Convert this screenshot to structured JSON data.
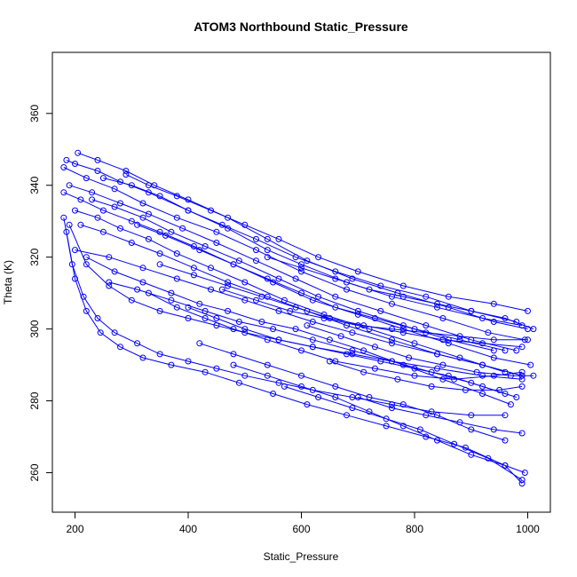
{
  "chart_data": {
    "type": "line",
    "title": "ATOM3 Northbound Static_Pressure",
    "xlabel": "Static_Pressure",
    "ylabel": "Theta (K)",
    "xlim": [
      160,
      1040
    ],
    "ylim": [
      249,
      377
    ],
    "xticks": [
      200,
      400,
      600,
      800,
      1000
    ],
    "yticks": [
      260,
      280,
      300,
      320,
      340,
      360
    ],
    "grid": false,
    "legend": "none",
    "marker": "open-circle",
    "line_color": "#0000FF",
    "series": [
      {
        "x": [
          185,
          200,
          240,
          280,
          330,
          400,
          470,
          540,
          600,
          680,
          760,
          840,
          920,
          990
        ],
        "y": [
          347,
          346,
          344,
          341,
          338,
          333,
          328,
          322,
          318,
          313,
          309,
          306,
          303,
          301
        ]
      },
      {
        "x": [
          205,
          240,
          290,
          340,
          400,
          470,
          540,
          610,
          690,
          770,
          860,
          940,
          1000
        ],
        "y": [
          349,
          347,
          344,
          340,
          336,
          331,
          325,
          319,
          314,
          310,
          306,
          302,
          300
        ]
      },
      {
        "x": [
          180,
          220,
          270,
          320,
          380,
          450,
          520,
          600,
          680,
          760,
          850,
          930,
          995
        ],
        "y": [
          345,
          342,
          339,
          335,
          331,
          327,
          322,
          316,
          311,
          307,
          303,
          299,
          297
        ]
      },
      {
        "x": [
          190,
          230,
          280,
          330,
          390,
          450,
          520,
          590,
          660,
          740,
          820,
          900,
          980
        ],
        "y": [
          340,
          338,
          335,
          332,
          328,
          324,
          319,
          314,
          309,
          305,
          301,
          297,
          294
        ]
      },
      {
        "x": [
          180,
          210,
          250,
          300,
          350,
          410,
          480,
          550,
          620,
          700,
          780,
          860,
          940,
          1005
        ],
        "y": [
          338,
          336,
          333,
          330,
          327,
          323,
          318,
          313,
          308,
          304,
          300,
          296,
          292,
          290
        ]
      },
      {
        "x": [
          200,
          240,
          280,
          330,
          380,
          440,
          500,
          570,
          640,
          720,
          800,
          880,
          960
        ],
        "y": [
          333,
          331,
          328,
          325,
          321,
          317,
          313,
          308,
          304,
          300,
          296,
          292,
          288
        ]
      },
      {
        "x": [
          210,
          250,
          300,
          350,
          410,
          470,
          540,
          610,
          680,
          760,
          840,
          920,
          990
        ],
        "y": [
          329,
          327,
          324,
          321,
          317,
          313,
          309,
          305,
          301,
          297,
          293,
          290,
          287
        ]
      },
      {
        "x": [
          250,
          300,
          350,
          400,
          460,
          520,
          590,
          660,
          740,
          820,
          900,
          980
        ],
        "y": [
          342,
          340,
          337,
          333,
          329,
          325,
          320,
          316,
          312,
          309,
          305,
          302
        ]
      },
      {
        "x": [
          290,
          330,
          380,
          440,
          500,
          560,
          630,
          700,
          780,
          860,
          940,
          1000
        ],
        "y": [
          343,
          340,
          337,
          333,
          329,
          325,
          320,
          316,
          312,
          309,
          307,
          305
        ]
      },
      {
        "x": [
          230,
          270,
          320,
          370,
          430,
          490,
          560,
          630,
          700,
          780,
          860,
          940
        ],
        "y": [
          336,
          334,
          331,
          327,
          323,
          319,
          314,
          309,
          305,
          301,
          297,
          294
        ]
      },
      {
        "x": [
          200,
          260,
          320,
          380,
          440,
          500,
          560,
          620,
          690,
          760,
          840,
          920,
          990
        ],
        "y": [
          322,
          320,
          317,
          314,
          311,
          308,
          305,
          302,
          299,
          296,
          293,
          290,
          287
        ]
      },
      {
        "x": [
          310,
          360,
          420,
          480,
          540,
          600,
          660,
          730,
          800,
          880,
          960
        ],
        "y": [
          329,
          326,
          322,
          318,
          314,
          310,
          306,
          303,
          300,
          297,
          294
        ]
      },
      {
        "x": [
          190,
          220,
          260,
          300,
          350,
          400,
          450,
          500,
          560,
          620,
          690,
          760,
          840,
          920,
          990
        ],
        "y": [
          329,
          318,
          312,
          308,
          305,
          303,
          301,
          299,
          297,
          295,
          293,
          291,
          289,
          287,
          286
        ]
      },
      {
        "x": [
          180,
          195,
          215,
          240,
          270,
          310,
          350,
          400,
          450,
          500,
          560,
          620,
          690,
          760,
          830,
          900,
          960
        ],
        "y": [
          331,
          318,
          309,
          303,
          299,
          296,
          293,
          291,
          289,
          287,
          285,
          283,
          281,
          279,
          277,
          276,
          276
        ]
      },
      {
        "x": [
          185,
          200,
          220,
          245,
          280,
          320,
          370,
          430,
          490,
          550,
          610,
          680,
          750,
          820,
          890,
          960,
          990
        ],
        "y": [
          327,
          314,
          305,
          299,
          295,
          292,
          290,
          288,
          285,
          282,
          279,
          276,
          273,
          270,
          267,
          262,
          257
        ]
      },
      {
        "x": [
          330,
          380,
          430,
          480,
          540,
          600,
          660,
          730,
          800,
          870,
          940,
          990
        ],
        "y": [
          310,
          306,
          303,
          300,
          297,
          294,
          291,
          289,
          287,
          286,
          287,
          288
        ]
      },
      {
        "x": [
          220,
          270,
          320,
          370,
          420,
          470,
          530,
          590,
          650,
          710,
          780,
          850,
          920,
          970
        ],
        "y": [
          320,
          316,
          313,
          310,
          307,
          305,
          302,
          300,
          297,
          294,
          290,
          286,
          282,
          279
        ]
      },
      {
        "x": [
          400,
          450,
          500,
          560,
          620,
          680,
          740,
          800,
          860,
          920,
          980
        ],
        "y": [
          306,
          303,
          300,
          297,
          295,
          293,
          291,
          289,
          287,
          284,
          281
        ]
      },
      {
        "x": [
          420,
          480,
          540,
          600,
          660,
          720,
          780,
          840,
          900,
          960
        ],
        "y": [
          296,
          293,
          290,
          287,
          284,
          281,
          279,
          276,
          272,
          269
        ]
      },
      {
        "x": [
          480,
          540,
          600,
          660,
          720,
          780,
          840,
          900,
          960,
          995
        ],
        "y": [
          290,
          287,
          284,
          281,
          277,
          273,
          269,
          265,
          262,
          260
        ]
      },
      {
        "x": [
          570,
          630,
          690,
          750,
          810,
          870,
          930,
          990
        ],
        "y": [
          284,
          281,
          278,
          275,
          272,
          268,
          264,
          258
        ]
      },
      {
        "x": [
          260,
          310,
          370,
          430,
          490,
          550,
          620,
          690,
          760,
          830,
          900,
          960
        ],
        "y": [
          313,
          311,
          308,
          305,
          302,
          300,
          297,
          294,
          291,
          288,
          285,
          282
        ]
      },
      {
        "x": [
          350,
          410,
          470,
          530,
          590,
          650,
          710,
          780,
          850,
          920,
          990
        ],
        "y": [
          318,
          315,
          312,
          309,
          306,
          303,
          301,
          299,
          297,
          296,
          295
        ]
      },
      {
        "x": [
          460,
          520,
          580,
          640,
          700,
          760,
          820,
          880,
          940,
          1000
        ],
        "y": [
          311,
          308,
          305,
          303,
          301,
          300,
          299,
          298,
          297,
          297
        ]
      },
      {
        "x": [
          540,
          600,
          660,
          720,
          780,
          840,
          900,
          960,
          1010
        ],
        "y": [
          320,
          317,
          314,
          311,
          309,
          307,
          305,
          303,
          300
        ]
      },
      {
        "x": [
          610,
          670,
          730,
          790,
          850,
          910,
          970,
          1010
        ],
        "y": [
          301,
          298,
          295,
          292,
          290,
          288,
          287,
          287
        ]
      },
      {
        "x": [
          650,
          710,
          770,
          830,
          890,
          950,
          990
        ],
        "y": [
          291,
          288,
          286,
          284,
          283,
          283,
          284
        ]
      },
      {
        "x": [
          700,
          760,
          820,
          880,
          940,
          990
        ],
        "y": [
          281,
          278,
          276,
          274,
          272,
          271
        ]
      }
    ]
  }
}
